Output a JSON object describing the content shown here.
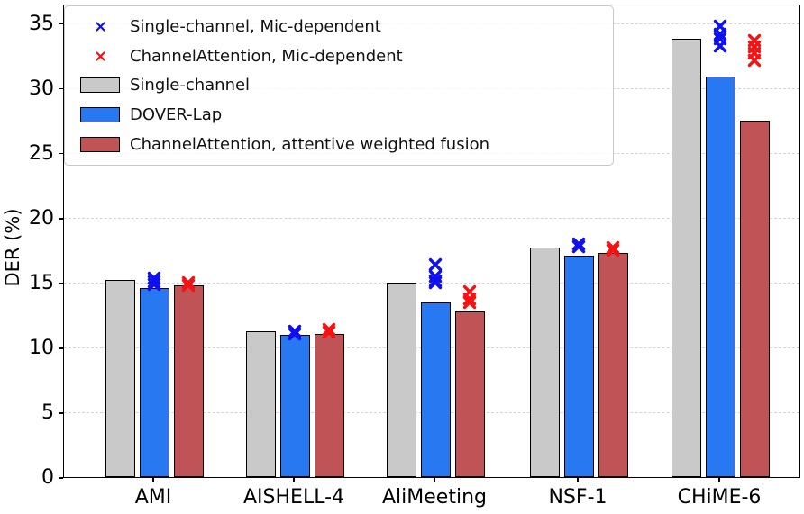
{
  "figure": {
    "ylabel": "DER (%)"
  },
  "chart_data": {
    "type": "bar",
    "title": "",
    "xlabel": "",
    "ylabel": "DER (%)",
    "ylim": [
      0,
      36.5
    ],
    "yticks": [
      0,
      5,
      10,
      15,
      20,
      25,
      30,
      35
    ],
    "grid": "horizontal-dashed",
    "legend_position": "upper-left",
    "categories": [
      "AMI",
      "AISHELL-4",
      "AliMeeting",
      "NSF-1",
      "CHiME-6"
    ],
    "series": [
      {
        "name": "Single-channel",
        "type": "bar",
        "color": "#c9c9c9",
        "values": [
          15.2,
          11.3,
          15.0,
          17.7,
          33.8
        ]
      },
      {
        "name": "DOVER-Lap",
        "type": "bar",
        "color": "#2878f2",
        "values": [
          14.6,
          11.0,
          13.5,
          17.1,
          30.9
        ]
      },
      {
        "name": "ChannelAttention, attentive weighted fusion",
        "type": "bar",
        "color": "#bf5355",
        "values": [
          14.8,
          11.1,
          12.8,
          17.3,
          27.5
        ]
      },
      {
        "name": "Single-channel, Mic-dependent",
        "type": "scatter-x",
        "color": "#1010ee",
        "over_bar_series": 1,
        "points": [
          [
            15.5,
            15.2,
            15.0
          ],
          [
            11.4,
            11.2
          ],
          [
            16.5,
            15.6,
            15.3,
            15.1
          ],
          [
            18.1,
            17.9
          ],
          [
            34.9,
            34.3,
            33.9,
            33.4
          ]
        ]
      },
      {
        "name": "ChannelAttention, Mic-dependent",
        "type": "scatter-x",
        "color": "#f51212",
        "over_bar_series": 2,
        "points": [
          [
            15.1,
            14.9
          ],
          [
            11.5,
            11.3
          ],
          [
            14.4,
            13.9,
            13.6
          ],
          [
            17.8,
            17.6
          ],
          [
            33.8,
            33.3,
            32.8,
            32.3
          ]
        ]
      }
    ],
    "legend_entries": [
      {
        "marker": "x",
        "color": "#1010ee",
        "label": "Single-channel, Mic-dependent"
      },
      {
        "marker": "x",
        "color": "#f51212",
        "label": "ChannelAttention, Mic-dependent"
      },
      {
        "marker": "patch",
        "color": "#c9c9c9",
        "label": "Single-channel"
      },
      {
        "marker": "patch",
        "color": "#2878f2",
        "label": "DOVER-Lap"
      },
      {
        "marker": "patch",
        "color": "#bf5355",
        "label": "ChannelAttention, attentive weighted fusion"
      }
    ]
  }
}
